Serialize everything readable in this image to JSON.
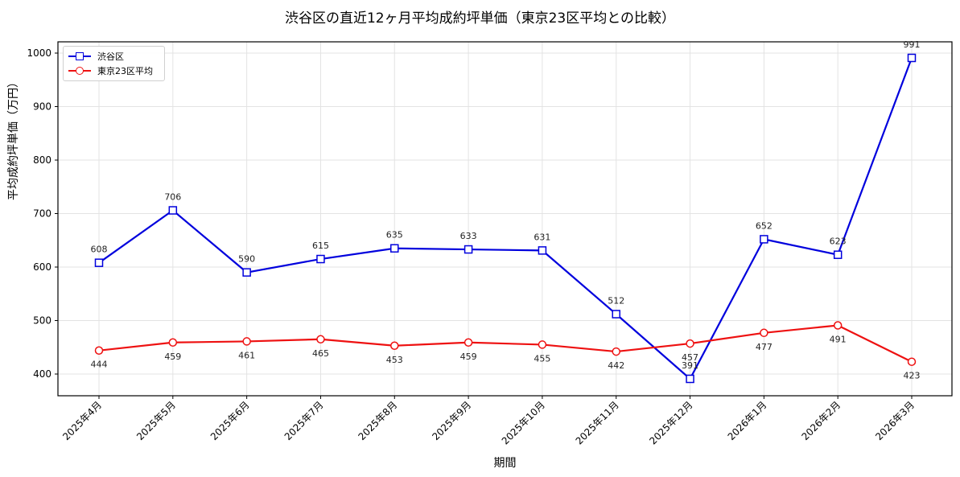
{
  "chart_data": {
    "type": "line",
    "title": "渋谷区の直近12ヶ月平均成約坪単価（東京23区平均との比較）",
    "xlabel": "期間",
    "ylabel": "平均成約坪単価（万円）",
    "categories": [
      "2025年4月",
      "2025年5月",
      "2025年6月",
      "2025年7月",
      "2025年8月",
      "2025年9月",
      "2025年10月",
      "2025年11月",
      "2025年12月",
      "2026年1月",
      "2026年2月",
      "2026年3月"
    ],
    "series": [
      {
        "name": "渋谷区",
        "color": "#0000dd",
        "marker": "square",
        "values": [
          608,
          706,
          590,
          615,
          635,
          633,
          631,
          512,
          391,
          652,
          623,
          991
        ]
      },
      {
        "name": "東京23区平均",
        "color": "#ee1111",
        "marker": "circle",
        "values": [
          444,
          459,
          461,
          465,
          453,
          459,
          455,
          442,
          457,
          477,
          491,
          423
        ]
      }
    ],
    "yticks": [
      400,
      500,
      600,
      700,
      800,
      900,
      1000
    ],
    "ylim": [
      360,
      1021
    ],
    "grid": true,
    "legend_position": "upper left"
  },
  "legend": {
    "items": [
      {
        "label": "渋谷区"
      },
      {
        "label": "東京23区平均"
      }
    ]
  }
}
